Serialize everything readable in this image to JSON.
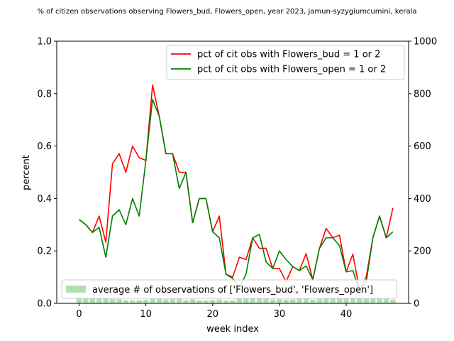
{
  "chart_data": {
    "type": "line",
    "title": "% of citizen observations observing Flowers_bud, Flowers_open, year 2023, jamun-syzygiumcumini, kerala",
    "xlabel": "week index",
    "ylabel": "percent",
    "xlim": [
      -3.35,
      49.35
    ],
    "ylim": [
      0,
      1.0
    ],
    "y2lim": [
      0,
      1000
    ],
    "x_ticks": [
      0,
      10,
      20,
      30,
      40
    ],
    "y_ticks": [
      0.0,
      0.2,
      0.4,
      0.6,
      0.8,
      1.0
    ],
    "y2_ticks": [
      0,
      200,
      400,
      600,
      800,
      1000
    ],
    "x_tick_labels": [
      "0",
      "10",
      "20",
      "30",
      "40"
    ],
    "y_tick_labels": [
      "0.0",
      "0.2",
      "0.4",
      "0.6",
      "0.8",
      "1.0"
    ],
    "y2_tick_labels": [
      "0",
      "200",
      "400",
      "600",
      "800",
      "1000"
    ],
    "grid": false,
    "legend_lines_placement": "top-right",
    "legend_bars_placement": "lower-left",
    "x": [
      0,
      1,
      2,
      3,
      4,
      5,
      6,
      7,
      8,
      9,
      10,
      11,
      12,
      13,
      14,
      15,
      16,
      17,
      18,
      19,
      20,
      21,
      22,
      23,
      24,
      25,
      26,
      27,
      28,
      29,
      30,
      31,
      32,
      33,
      34,
      35,
      36,
      37,
      38,
      39,
      40,
      41,
      42,
      43,
      44,
      45,
      46,
      47
    ],
    "series": [
      {
        "name": "pct of cit obs with Flowers_bud = 1 or 2",
        "color": "#ff0000",
        "axis": "left",
        "values": [
          0.32,
          0.3,
          0.27,
          0.333,
          0.233,
          0.533,
          0.571,
          0.5,
          0.6,
          0.556,
          0.545,
          0.833,
          0.714,
          0.571,
          0.571,
          0.5,
          0.5,
          0.308,
          0.4,
          0.4,
          0.273,
          0.333,
          0.111,
          0.1,
          0.176,
          0.167,
          0.25,
          0.21,
          0.21,
          0.133,
          0.133,
          0.083,
          0.14,
          0.125,
          0.19,
          0.09,
          0.21,
          0.286,
          0.25,
          0.26,
          0.12,
          0.188,
          0.05,
          0.1,
          0.25,
          0.333,
          0.25,
          0.364
        ]
      },
      {
        "name": "pct of cit obs with Flowers_open = 1 or 2",
        "color": "#008000",
        "axis": "left",
        "values": [
          0.32,
          0.3,
          0.27,
          0.29,
          0.176,
          0.333,
          0.357,
          0.3,
          0.4,
          0.333,
          0.545,
          0.778,
          0.714,
          0.571,
          0.571,
          0.438,
          0.5,
          0.308,
          0.4,
          0.4,
          0.273,
          0.25,
          0.111,
          0.095,
          0.059,
          0.111,
          0.25,
          0.263,
          0.158,
          0.133,
          0.2,
          0.167,
          0.14,
          0.125,
          0.143,
          0.09,
          0.21,
          0.25,
          0.25,
          0.22,
          0.12,
          0.125,
          0.05,
          0.08,
          0.25,
          0.333,
          0.25,
          0.273
        ]
      },
      {
        "name": "average # of observations of ['Flowers_bud', 'Flowers_open']",
        "type": "bar",
        "color": "#b2dfb2",
        "axis": "right",
        "values": [
          25,
          25,
          23,
          25,
          22,
          17,
          16,
          12,
          12,
          12,
          14,
          20,
          17,
          15,
          17,
          18,
          12,
          16,
          12,
          11,
          13,
          15,
          11,
          12,
          21,
          20,
          22,
          21,
          18,
          15,
          16,
          14,
          15,
          19,
          20,
          14,
          17,
          21,
          20,
          20,
          22,
          23,
          22,
          19,
          20,
          18,
          17,
          14
        ]
      }
    ]
  }
}
